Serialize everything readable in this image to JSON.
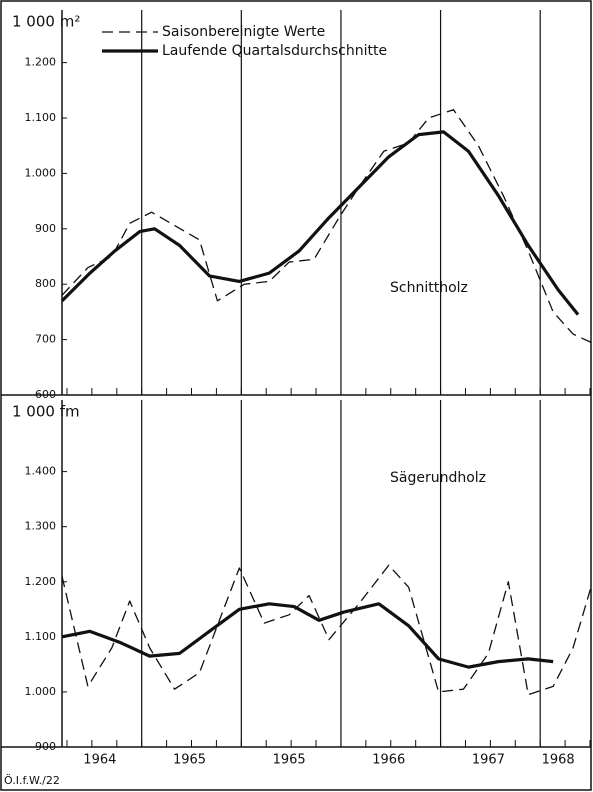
{
  "chart_data": [
    {
      "type": "line",
      "title": "1 000 m²",
      "annotation": "Schnittholz",
      "legend": "upper left",
      "xlim": [
        0,
        21.24
      ],
      "xticks": [
        3.2,
        7.2,
        11.2,
        15.2,
        19.2
      ],
      "ylim": [
        600,
        1295
      ],
      "yticks": [
        600,
        700,
        800,
        900,
        {
          "value": 1000,
          "label": "1.000"
        },
        {
          "value": 1100,
          "label": "1.100"
        },
        {
          "value": 1200,
          "label": "1.200"
        }
      ],
      "series": [
        {
          "name": "Saisonbereinigte Werte",
          "color": "#111111",
          "dashed": true,
          "x": [
            0,
            1.04,
            2,
            2.72,
            3.6,
            5.52,
            6.24,
            7.32,
            8.32,
            9.12,
            10.12,
            11.12,
            11.92,
            12.92,
            13.92,
            14.72,
            15.72,
            16.72,
            17.72,
            18.72,
            19.72,
            20.52,
            21.24
          ],
          "values": [
            780,
            830,
            850,
            910,
            930,
            880,
            770,
            800,
            805,
            840,
            845,
            920,
            975,
            1040,
            1055,
            1100,
            1115,
            1050,
            960,
            860,
            750,
            710,
            695
          ]
        },
        {
          "name": "Laufende Quartalsdurchschnitte",
          "color": "#111111",
          "dashed": false,
          "x": [
            0,
            1.12,
            2.12,
            3.12,
            3.72,
            4.72,
            5.92,
            7.12,
            8.32,
            9.52,
            10.72,
            11.92,
            13.12,
            14.32,
            15.32,
            16.32,
            17.52,
            18.72,
            19.92,
            20.72
          ],
          "values": [
            770,
            820,
            860,
            895,
            900,
            870,
            815,
            805,
            820,
            860,
            920,
            975,
            1030,
            1070,
            1075,
            1040,
            960,
            870,
            790,
            745
          ]
        }
      ]
    },
    {
      "type": "line",
      "title": "1 000 fm",
      "annotation": "Sägerundholz",
      "xlim": [
        0,
        21.24
      ],
      "xticks": [
        3.2,
        7.2,
        11.2,
        15.2,
        19.2
      ],
      "xlabels": [
        {
          "value": 1.52,
          "label": "1964"
        },
        {
          "value": 5.12,
          "label": "1965"
        },
        {
          "value": 9.12,
          "label": "1965"
        },
        {
          "value": 13.12,
          "label": "1966"
        },
        {
          "value": 17.12,
          "label": "1967"
        },
        {
          "value": 19.92,
          "label": "1968"
        }
      ],
      "ylim": [
        900,
        1530
      ],
      "yticks": [
        900,
        {
          "value": 1000,
          "label": "1.000"
        },
        {
          "value": 1100,
          "label": "1.100"
        },
        {
          "value": 1200,
          "label": "1.200"
        },
        {
          "value": 1300,
          "label": "1.300"
        },
        {
          "value": 1400,
          "label": "1.400"
        }
      ],
      "series": [
        {
          "color": "#111111",
          "dashed": true,
          "x": [
            0,
            1.04,
            2,
            2.72,
            3.52,
            4.52,
            5.52,
            7.12,
            8.12,
            9.12,
            9.92,
            10.72,
            11.92,
            13.12,
            13.92,
            15.12,
            16.12,
            17.12,
            17.92,
            18.72,
            19.72,
            20.52,
            21.24
          ],
          "values": [
            1210,
            1010,
            1080,
            1165,
            1080,
            1005,
            1035,
            1225,
            1125,
            1140,
            1175,
            1095,
            1160,
            1230,
            1190,
            1000,
            1005,
            1070,
            1200,
            995,
            1010,
            1080,
            1190
          ]
        },
        {
          "color": "#111111",
          "dashed": false,
          "x": [
            0,
            1.12,
            2.32,
            3.52,
            4.72,
            5.92,
            7.12,
            8.32,
            9.32,
            10.32,
            11.32,
            12.72,
            13.92,
            15.12,
            16.32,
            17.52,
            18.72,
            19.72
          ],
          "values": [
            1100,
            1110,
            1090,
            1065,
            1070,
            1110,
            1150,
            1160,
            1155,
            1130,
            1145,
            1160,
            1120,
            1060,
            1045,
            1055,
            1060,
            1055
          ]
        }
      ]
    }
  ],
  "footer": "Ö.I.f.W./22"
}
